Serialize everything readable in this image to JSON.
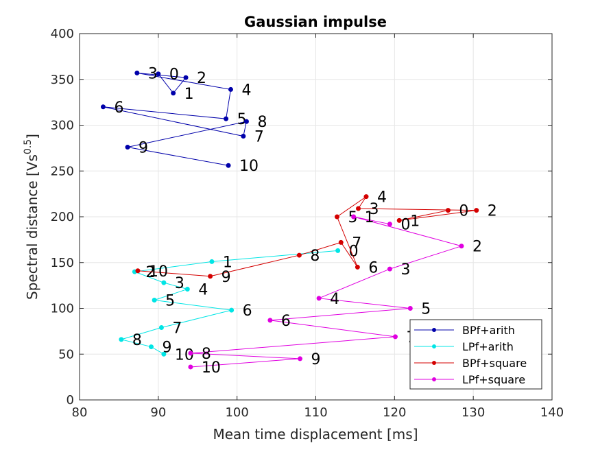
{
  "chart_data": {
    "type": "line",
    "title": "Gaussian impulse",
    "xlabel": "Mean time displacement [ms]",
    "ylabel_main": "Spectral distance [Vs",
    "ylabel_sup": "0.5",
    "ylabel_end": "]",
    "xlim": [
      80,
      140
    ],
    "ylim": [
      0,
      400
    ],
    "xticks": [
      80,
      90,
      100,
      110,
      120,
      130,
      140
    ],
    "yticks": [
      0,
      50,
      100,
      150,
      200,
      250,
      300,
      350,
      400
    ],
    "xtick_labels": [
      "80",
      "90",
      "100",
      "110",
      "120",
      "130",
      "140"
    ],
    "ytick_labels": [
      "0",
      "50",
      "100",
      "150",
      "200",
      "250",
      "300",
      "350",
      "400"
    ],
    "grid": true,
    "legend_position": "bottom-right",
    "series": [
      {
        "name": "BPf+arith",
        "color": "#0000aa",
        "labels": [
          "0",
          "1",
          "2",
          "3",
          "4",
          "5",
          "6",
          "7",
          "8",
          "9",
          "10"
        ],
        "x": [
          90.0,
          91.9,
          93.5,
          87.3,
          99.2,
          98.6,
          83.0,
          100.8,
          101.2,
          86.1,
          98.9
        ],
        "y": [
          356,
          335,
          352,
          357,
          339,
          307,
          320,
          288,
          304,
          276,
          256
        ]
      },
      {
        "name": "LPf+arith",
        "color": "#00e5e5",
        "labels": [
          "0",
          "1",
          "2",
          "3",
          "4",
          "5",
          "6",
          "7",
          "8",
          "9",
          "10"
        ],
        "x": [
          112.8,
          96.8,
          87.0,
          90.7,
          93.7,
          89.5,
          99.3,
          90.4,
          85.3,
          89.1,
          90.7
        ],
        "y": [
          163,
          151,
          140,
          128,
          121,
          109,
          98,
          79,
          66,
          58,
          50
        ]
      },
      {
        "name": "BPf+square",
        "color": "#d40000",
        "labels": [
          "0",
          "1",
          "2",
          "3",
          "4",
          "5",
          "6",
          "7",
          "8",
          "9",
          "10"
        ],
        "x": [
          126.8,
          120.6,
          130.4,
          115.4,
          116.4,
          112.7,
          115.3,
          113.2,
          107.9,
          96.6,
          87.4
        ],
        "y": [
          207,
          196,
          207,
          209,
          222,
          200,
          145,
          172,
          158,
          135,
          141
        ]
      },
      {
        "name": "LPf+square",
        "color": "#e000e0",
        "labels": [
          "0",
          "1",
          "2",
          "3",
          "4",
          "5",
          "6",
          "7",
          "8",
          "9",
          "10"
        ],
        "x": [
          119.4,
          114.8,
          128.5,
          119.4,
          110.4,
          122.0,
          104.2,
          120.1,
          94.1,
          108.0,
          94.1
        ],
        "y": [
          192,
          200,
          168,
          143,
          111,
          100,
          87,
          69,
          51,
          45,
          36
        ]
      }
    ]
  }
}
